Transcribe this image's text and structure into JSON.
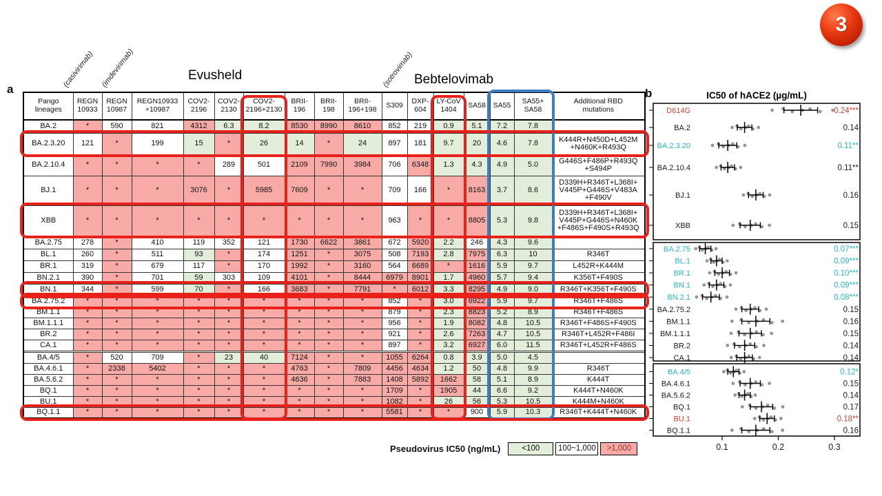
{
  "slide": {
    "badge": "3"
  },
  "panel_a": {
    "label": "a",
    "annotations": {
      "casivirimab": "(casivirimab)",
      "imdevirimab": "(imdevirimab)",
      "sotrovimab": "(sotrovimab)",
      "evusheld": "Evusheld",
      "bebtelovimab": "Bebtelovimab"
    },
    "columns": [
      "Pango\nlineages",
      "REGN\n10933",
      "REGN\n10987",
      "REGN10933\n+10987",
      "COV2-\n2196",
      "COV2-\n2130",
      "COV2-\n2196+2130",
      "BRII-\n196",
      "BRII-\n198",
      "BRII-\n196+198",
      "S309",
      "DXP-\n604",
      "LY-CoV\n1404",
      "SA58",
      "SA55",
      "SA55+\nSA58",
      "Additional RBD\nmutations"
    ],
    "highlights": {
      "red_columns": [
        6,
        12
      ],
      "blue_column_span": [
        14,
        15
      ]
    },
    "groups": [
      {
        "rows": [
          {
            "lineage": "BA.2",
            "circled": false,
            "values": [
              "*",
              "590",
              "821",
              "4312",
              "6.3",
              "8.2",
              "8530",
              "8990",
              "8610",
              "852",
              "219",
              "0.9",
              "5.1",
              "7.2",
              "7.8"
            ],
            "mutations": ""
          },
          {
            "lineage": "BA.2.3.20",
            "circled": true,
            "values": [
              "121",
              "*",
              "199",
              "15",
              "*",
              "26",
              "14",
              "*",
              "24",
              "897",
              "181",
              "9.7",
              "20",
              "4.6",
              "7.8"
            ],
            "mutations": "K444R+N450D+L452M\n+N460K+R493Q"
          },
          {
            "lineage": "BA.2.10.4",
            "circled": false,
            "values": [
              "*",
              "*",
              "*",
              "*",
              "289",
              "501",
              "2109",
              "7990",
              "3984",
              "706",
              "6348",
              "1.3",
              "4.3",
              "4.9",
              "5.0"
            ],
            "mutations": "G446S+F486P+R493Q\n+S494P"
          },
          {
            "lineage": "BJ.1",
            "circled": false,
            "values": [
              "*",
              "*",
              "*",
              "3076",
              "*",
              "5985",
              "7609",
              "*",
              "*",
              "709",
              "166",
              "*",
              "8163",
              "3.7",
              "8.6"
            ],
            "mutations": "D339H+R346T+L368I+\nV445P+G446S+V483A\n+F490V"
          },
          {
            "lineage": "XBB",
            "circled": true,
            "values": [
              "*",
              "*",
              "*",
              "*",
              "*",
              "*",
              "*",
              "*",
              "*",
              "963",
              "*",
              "*",
              "8805",
              "5.3",
              "9.8"
            ],
            "mutations": "D339H+R346T+L368I+\nV445P+G446S+N460K\n+F486S+F490S+R493Q"
          }
        ]
      },
      {
        "rows": [
          {
            "lineage": "BA.2.75",
            "circled": false,
            "values": [
              "278",
              "*",
              "410",
              "119",
              "352",
              "121",
              "1730",
              "6622",
              "3861",
              "672",
              "5920",
              "2.2",
              "246",
              "4.3",
              "9.6"
            ],
            "mutations": ""
          },
          {
            "lineage": "BL.1",
            "circled": false,
            "values": [
              "260",
              "*",
              "511",
              "93",
              "*",
              "174",
              "1251",
              "*",
              "3075",
              "508",
              "7193",
              "2.8",
              "7975",
              "6.3",
              "10"
            ],
            "mutations": "R346T"
          },
          {
            "lineage": "BR.1",
            "circled": false,
            "values": [
              "319",
              "*",
              "679",
              "117",
              "*",
              "170",
              "1992",
              "*",
              "3160",
              "564",
              "6689",
              "*",
              "1616",
              "5.9",
              "9.7"
            ],
            "mutations": "L452R+K444M"
          },
          {
            "lineage": "BN.2.1",
            "circled": false,
            "values": [
              "390",
              "*",
              "701",
              "59",
              "303",
              "109",
              "4101",
              "*",
              "8444",
              "6979",
              "8901",
              "1.7",
              "4960",
              "5.7",
              "9.4"
            ],
            "mutations": "K356T+F490S"
          },
          {
            "lineage": "BN.1",
            "circled": true,
            "values": [
              "344",
              "*",
              "599",
              "70",
              "*",
              "166",
              "3683",
              "*",
              "7791",
              "*",
              "6012",
              "3.3",
              "8295",
              "4.9",
              "9.0"
            ],
            "mutations": "R346T+K356T+F490S"
          },
          {
            "lineage": "BA.2.75.2",
            "circled": true,
            "values": [
              "*",
              "*",
              "*",
              "*",
              "*",
              "*",
              "*",
              "*",
              "*",
              "852",
              "*",
              "3.0",
              "6922",
              "5.9",
              "9.7"
            ],
            "mutations": "R346T+F486S"
          },
          {
            "lineage": "BM.1.1",
            "circled": false,
            "values": [
              "*",
              "*",
              "*",
              "*",
              "*",
              "*",
              "*",
              "*",
              "*",
              "879",
              "*",
              "2.3",
              "8823",
              "5.2",
              "8.9"
            ],
            "mutations": "R346T+F486S"
          },
          {
            "lineage": "BM.1.1.1",
            "circled": false,
            "values": [
              "*",
              "*",
              "*",
              "*",
              "*",
              "*",
              "*",
              "*",
              "*",
              "956",
              "*",
              "1.9",
              "8082",
              "4.8",
              "10.5"
            ],
            "mutations": "R346T+F486S+F490S"
          },
          {
            "lineage": "BR.2",
            "circled": false,
            "values": [
              "*",
              "*",
              "*",
              "*",
              "*",
              "*",
              "*",
              "*",
              "*",
              "921",
              "*",
              "2.6",
              "7263",
              "4.7",
              "10.5"
            ],
            "mutations": "R346T+L452R+F486I"
          },
          {
            "lineage": "CA.1",
            "circled": false,
            "values": [
              "*",
              "*",
              "*",
              "*",
              "*",
              "*",
              "*",
              "*",
              "*",
              "897",
              "*",
              "3.2",
              "6927",
              "6.0",
              "11.5"
            ],
            "mutations": "R346T+L452R+F486S"
          }
        ]
      },
      {
        "rows": [
          {
            "lineage": "BA.4/5",
            "circled": false,
            "values": [
              "*",
              "520",
              "709",
              "*",
              "23",
              "40",
              "7124",
              "*",
              "*",
              "1055",
              "6264",
              "0.8",
              "3.9",
              "5.0",
              "4.5"
            ],
            "mutations": ""
          },
          {
            "lineage": "BA.4.6.1",
            "circled": false,
            "values": [
              "*",
              "2338",
              "5402",
              "*",
              "*",
              "*",
              "4763",
              "*",
              "7809",
              "4456",
              "4634",
              "1.2",
              "50",
              "4.8",
              "9.9"
            ],
            "mutations": "R346T"
          },
          {
            "lineage": "BA.5.6.2",
            "circled": false,
            "values": [
              "*",
              "*",
              "*",
              "*",
              "*",
              "*",
              "4636",
              "*",
              "7883",
              "1408",
              "5892",
              "1662",
              "58",
              "5.1",
              "8.9"
            ],
            "mutations": "K444T"
          },
          {
            "lineage": "BQ.1",
            "circled": false,
            "values": [
              "*",
              "*",
              "*",
              "*",
              "*",
              "*",
              "*",
              "*",
              "*",
              "1709",
              "*",
              "1905",
              "44",
              "6.6",
              "9.2"
            ],
            "mutations": "K444T+N460K"
          },
          {
            "lineage": "BU.1",
            "circled": false,
            "values": [
              "*",
              "*",
              "*",
              "*",
              "*",
              "*",
              "*",
              "*",
              "*",
              "1082",
              "*",
              "26",
              "56",
              "5.3",
              "10.5"
            ],
            "mutations": "K444M+N460K"
          },
          {
            "lineage": "BQ.1.1",
            "circled": true,
            "values": [
              "*",
              "*",
              "*",
              "*",
              "*",
              "*",
              "*",
              "*",
              "*",
              "5581",
              "*",
              "*",
              "900",
              "5.9",
              "10.3"
            ],
            "mutations": "R346T+K444T+N460K"
          }
        ]
      }
    ],
    "legend": {
      "title": "Pseudovirus IC50 (ng/mL)",
      "items": [
        {
          "label": "<100",
          "color": "#e2eed9"
        },
        {
          "label": "100~1,000",
          "color": "#ffffff"
        },
        {
          "label": ">1,000",
          "color": "#f8aba6"
        }
      ]
    },
    "colors": {
      "green": "#e2eed9",
      "white": "#ffffff",
      "red": "#f8aba6",
      "circle_red": "#e8221a",
      "circle_blue": "#3d7ec2"
    }
  },
  "panel_b": {
    "label": "b",
    "colors": {
      "black": "#1a1a1a",
      "cyan": "#29b4c4",
      "red": "#d6402c",
      "dot": "#8a8a8a"
    }
  },
  "chart_data": {
    "type": "scatter",
    "title": "IC50 of hACE2 (µg/mL)",
    "x_axis": {
      "ticks": [
        0.1,
        0.2,
        0.3
      ]
    },
    "legend_position": "none",
    "note": "mean IC50 with error bars; gray dots are replicates",
    "dot_offsets": [
      -1.7,
      -1.05,
      -0.5,
      0.1,
      0.55,
      1.15,
      1.9
    ],
    "groups": [
      {
        "rows": [
          {
            "label": "D614G",
            "color": "red",
            "mean": 0.24,
            "sd": 0.03,
            "value_label": "0.24***"
          },
          {
            "label": "BA.2",
            "color": "black",
            "mean": 0.14,
            "sd": 0.013,
            "value_label": "0.14"
          },
          {
            "label": "BA.2.3.20",
            "color": "cyan",
            "mean": 0.11,
            "sd": 0.016,
            "value_label": "0.11**"
          },
          {
            "label": "BA.2.10.4",
            "color": "black",
            "mean": 0.11,
            "sd": 0.012,
            "value_label": "0.11**"
          },
          {
            "label": "BJ.1",
            "color": "black",
            "mean": 0.16,
            "sd": 0.013,
            "value_label": "0.16"
          },
          {
            "label": "XBB",
            "color": "black",
            "mean": 0.15,
            "sd": 0.018,
            "value_label": "0.15"
          }
        ]
      },
      {
        "rows": [
          {
            "label": "BA.2.75",
            "color": "cyan",
            "mean": 0.07,
            "sd": 0.01,
            "value_label": "0.07***"
          },
          {
            "label": "BL.1",
            "color": "cyan",
            "mean": 0.09,
            "sd": 0.01,
            "value_label": "0.09***"
          },
          {
            "label": "BR.1",
            "color": "cyan",
            "mean": 0.1,
            "sd": 0.013,
            "value_label": "0.10***"
          },
          {
            "label": "BN.1",
            "color": "cyan",
            "mean": 0.09,
            "sd": 0.013,
            "value_label": "0.09***"
          },
          {
            "label": "BN.2.1",
            "color": "cyan",
            "mean": 0.08,
            "sd": 0.015,
            "value_label": "0.08***"
          },
          {
            "label": "BA.2.75.2",
            "color": "black",
            "mean": 0.15,
            "sd": 0.015,
            "value_label": "0.15"
          },
          {
            "label": "BM.1.1",
            "color": "black",
            "mean": 0.16,
            "sd": 0.025,
            "value_label": "0.16"
          },
          {
            "label": "BM.1.1.1",
            "color": "black",
            "mean": 0.15,
            "sd": 0.02,
            "value_label": "0.15"
          },
          {
            "label": "BR.2",
            "color": "black",
            "mean": 0.14,
            "sd": 0.018,
            "value_label": "0.14"
          },
          {
            "label": "CA.1",
            "color": "black",
            "mean": 0.14,
            "sd": 0.014,
            "value_label": "0.14"
          }
        ]
      },
      {
        "rows": [
          {
            "label": "BA.4/5",
            "color": "cyan",
            "mean": 0.12,
            "sd": 0.01,
            "value_label": "0.12*"
          },
          {
            "label": "BA.4.6.1",
            "color": "black",
            "mean": 0.15,
            "sd": 0.018,
            "value_label": "0.15"
          },
          {
            "label": "BA.5.6.2",
            "color": "black",
            "mean": 0.14,
            "sd": 0.01,
            "value_label": "0.14"
          },
          {
            "label": "BQ.1",
            "color": "black",
            "mean": 0.17,
            "sd": 0.02,
            "value_label": "0.17"
          },
          {
            "label": "BU.1",
            "color": "red",
            "mean": 0.18,
            "sd": 0.013,
            "value_label": "0.18**"
          },
          {
            "label": "BQ.1.1",
            "color": "black",
            "mean": 0.16,
            "sd": 0.025,
            "value_label": "0.16"
          }
        ]
      }
    ]
  }
}
